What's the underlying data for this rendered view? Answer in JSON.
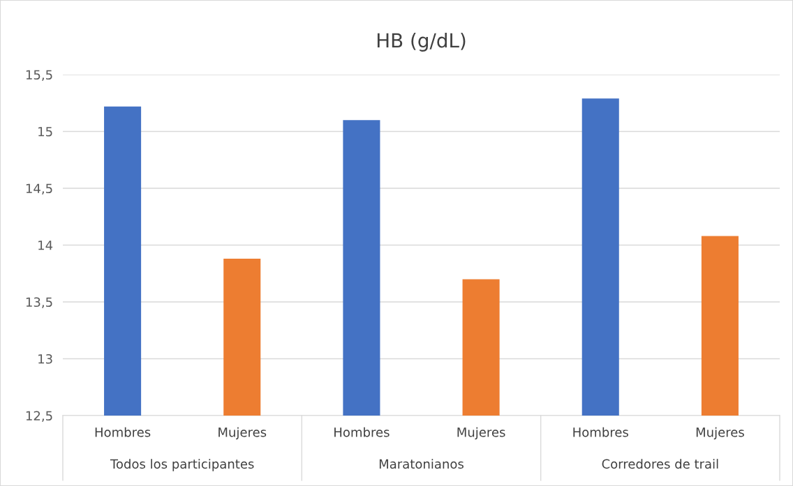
{
  "chart_data": {
    "type": "bar",
    "title": "HB (g/dL)",
    "categories": [
      "Hombres",
      "Mujeres",
      "Hombres",
      "Mujeres",
      "Hombres",
      "Mujeres"
    ],
    "values": [
      15.22,
      13.88,
      15.1,
      13.7,
      15.29,
      14.08
    ],
    "colors": [
      "#4472c4",
      "#ed7d31",
      "#4472c4",
      "#ed7d31",
      "#4472c4",
      "#ed7d31"
    ],
    "ylim": [
      12.5,
      15.5
    ],
    "yticks": [
      {
        "value": 12.5,
        "label": "12,5"
      },
      13,
      {
        "value": 13.5,
        "label": "13,5"
      },
      14,
      {
        "value": 14.5,
        "label": "14,5"
      },
      15,
      {
        "value": 15.5,
        "label": "15,5"
      }
    ],
    "grid": "y",
    "annotations": [
      "Todos los participantes",
      "Maratonianos",
      "Corredores de trail"
    ]
  }
}
